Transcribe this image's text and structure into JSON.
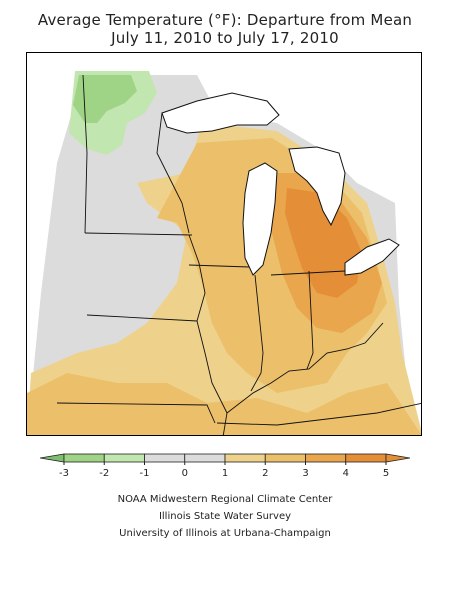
{
  "title": {
    "line1": "Average Temperature (°F): Departure from Mean",
    "line2": "July 11, 2010 to July 17, 2010"
  },
  "legend": {
    "tick_labels": [
      "-3",
      "-2",
      "-1",
      "0",
      "1",
      "2",
      "3",
      "4",
      "5"
    ],
    "bins": [
      {
        "range": "< -3",
        "color": "#7dbf6e"
      },
      {
        "range": "-3 to -2",
        "color": "#9fd386"
      },
      {
        "range": "-2 to -1",
        "color": "#c2e6b0"
      },
      {
        "range": "-1 to 0",
        "color": "#dcdcdc"
      },
      {
        "range": "0 to 1",
        "color": "#dcdcdc"
      },
      {
        "range": "1 to 2",
        "color": "#eed18a"
      },
      {
        "range": "2 to 3",
        "color": "#ecbf6a"
      },
      {
        "range": "3 to 4",
        "color": "#e9a64c"
      },
      {
        "range": "4 to 5",
        "color": "#e48f37"
      },
      {
        "range": "> 5",
        "color": "#e48f37"
      }
    ]
  },
  "map": {
    "colors": {
      "land_base": "#dcdcdc",
      "very_light_warm": "#eed18a",
      "light_warm": "#ecbf6a",
      "warm": "#e9a64c",
      "hot": "#e48f37",
      "cool_1": "#c2e6b0",
      "cool_2": "#9fd386",
      "water": "#ffffff",
      "outline": "#111111"
    }
  },
  "credits": {
    "line1": "NOAA Midwestern Regional Climate Center",
    "line2": "Illinois State Water Survey",
    "line3": "University of Illinois at Urbana-Champaign"
  }
}
